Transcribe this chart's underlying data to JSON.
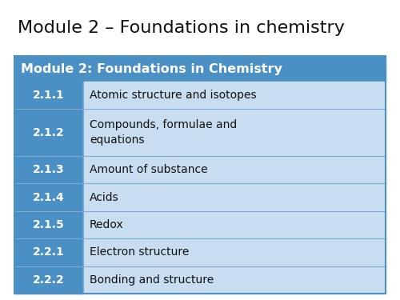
{
  "title": "Module 2 – Foundations in chemistry",
  "header_text": "Module 2: Foundations in Chemistry",
  "header_bg": "#4A90C4",
  "header_text_color": "#FFFFFF",
  "row_left_bg": "#4A90C4",
  "row_left_text_color": "#FFFFFF",
  "row_right_bg": "#C8DDF0",
  "row_right_text_color": "#111111",
  "table_border_color": "#4A90C4",
  "divider_color": "#7AADD4",
  "background_color": "#FFFFFF",
  "rows": [
    {
      "code": "2.1.1",
      "description": "Atomic structure and isotopes"
    },
    {
      "code": "2.1.2",
      "description": "Compounds, formulae and\nequations"
    },
    {
      "code": "2.1.3",
      "description": "Amount of substance"
    },
    {
      "code": "2.1.4",
      "description": "Acids"
    },
    {
      "code": "2.1.5",
      "description": "Redox"
    },
    {
      "code": "2.2.1",
      "description": "Electron structure"
    },
    {
      "code": "2.2.2",
      "description": "Bonding and structure"
    }
  ],
  "title_fontsize": 16,
  "header_fontsize": 11.5,
  "row_fontsize": 10,
  "fig_width": 5.0,
  "fig_height": 3.75,
  "dpi": 100
}
